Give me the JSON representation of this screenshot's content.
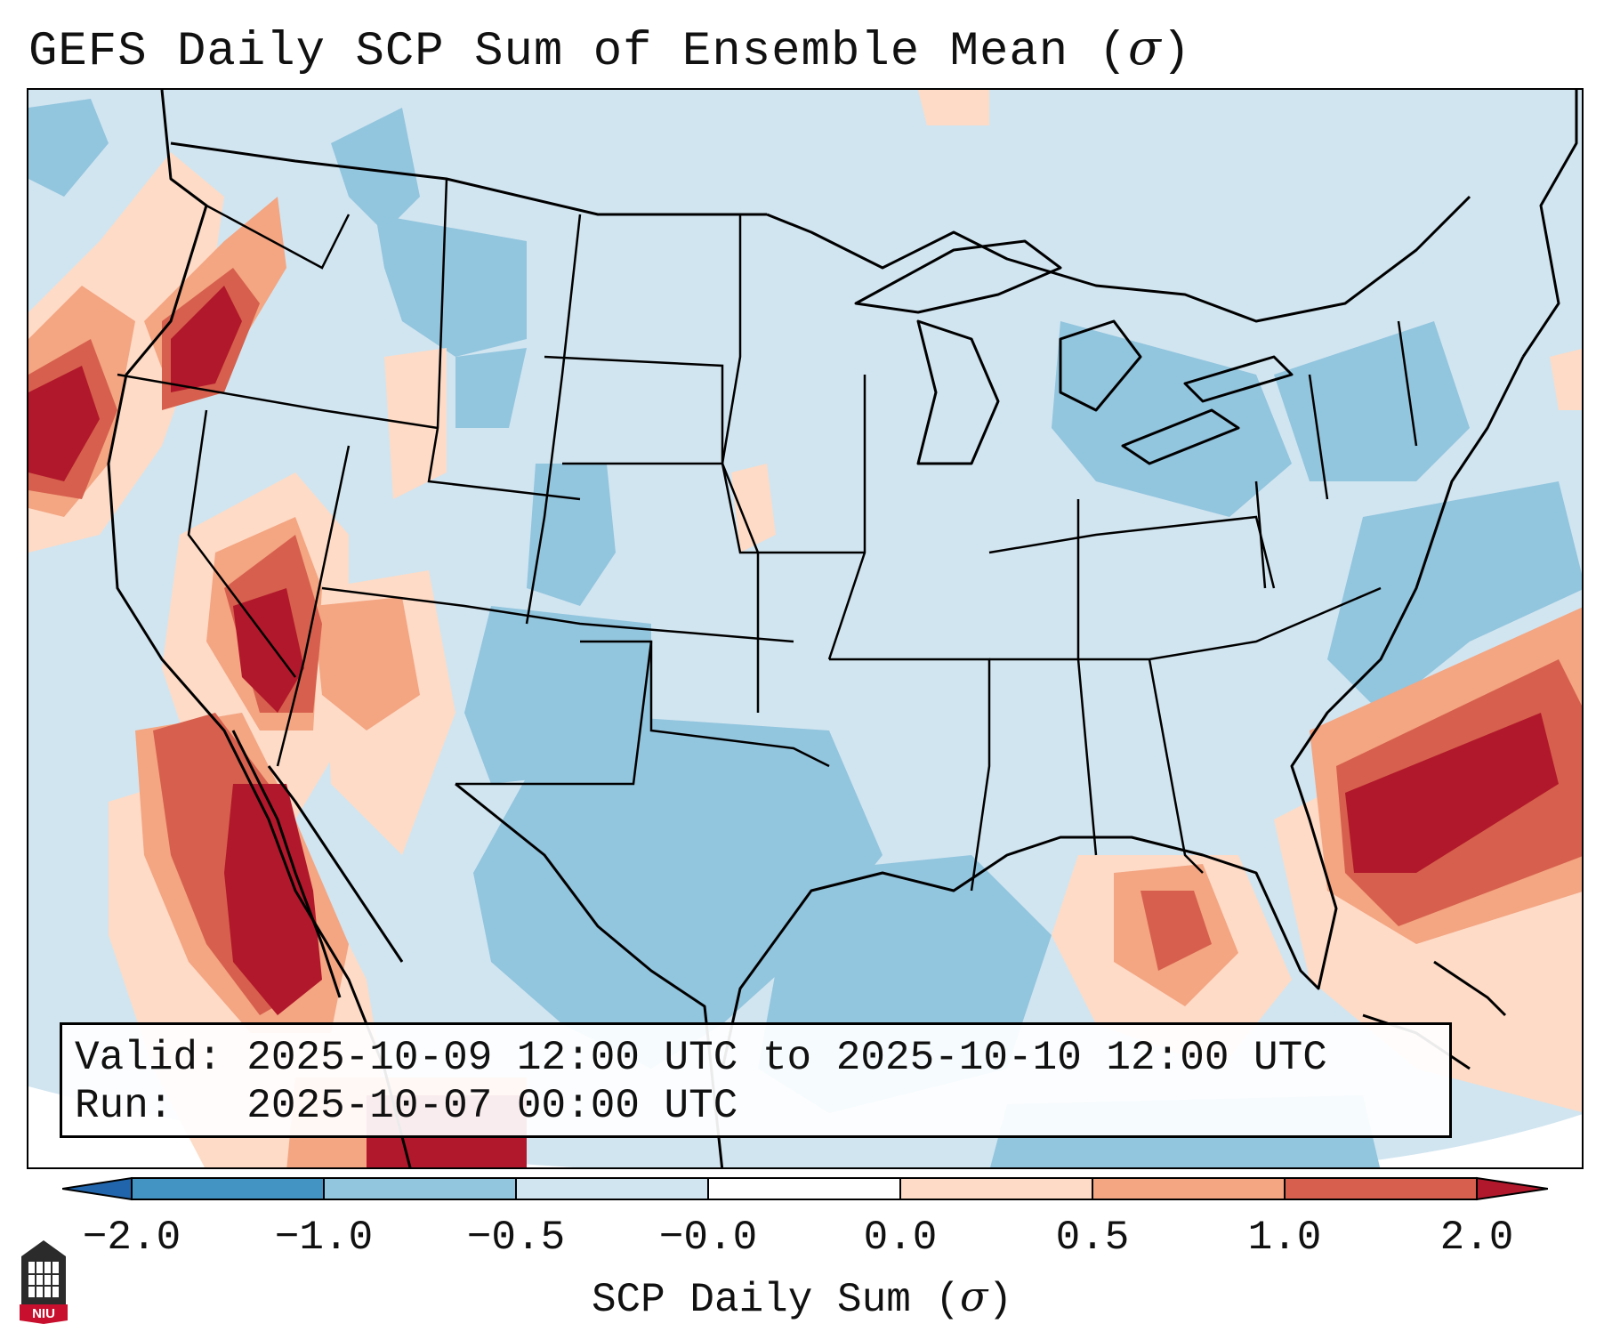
{
  "title": {
    "prefix": "GEFS Daily SCP Sum of Ensemble Mean (",
    "sigma": "σ",
    "suffix": ")"
  },
  "info": {
    "valid_label": "Valid:",
    "valid_range": "2025-10-09 12:00 UTC to 2025-10-10 12:00 UTC",
    "run_label": "Run:",
    "run_time": "2025-10-07 00:00 UTC"
  },
  "colorbar": {
    "ticks": [
      "−2.0",
      "−1.0",
      "−0.5",
      "−0.0",
      "0.0",
      "0.5",
      "1.0",
      "2.0"
    ],
    "label_prefix": "SCP Daily Sum (",
    "label_sigma": "σ",
    "label_suffix": ")",
    "colors": [
      "#4393c3",
      "#92c5de",
      "#d1e5f0",
      "#ffffff",
      "#fddbc7",
      "#f4a582",
      "#d6604d",
      "#b2182b"
    ]
  },
  "logo": {
    "text": "NIU",
    "color": "#c8102e"
  },
  "map_regions": [
    {
      "name": "pacific-northwest-coast-high",
      "level": 7
    },
    {
      "name": "california-nevada-high",
      "level": 7
    },
    {
      "name": "baja-gulf-of-california-high",
      "level": 7
    },
    {
      "name": "atlantic-offshore-high",
      "level": 7
    },
    {
      "name": "gulf-of-mexico-moderate",
      "level": 5
    },
    {
      "name": "texas-gulf-negative",
      "level": 1
    }
  ]
}
